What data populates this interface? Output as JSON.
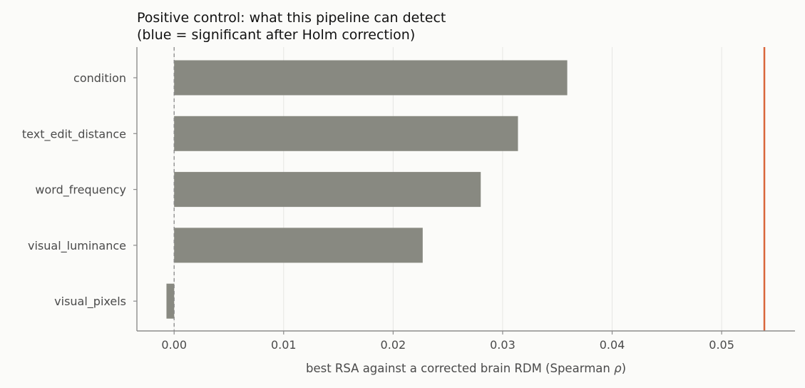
{
  "chart_data": {
    "type": "bar",
    "orientation": "horizontal",
    "title": "Positive control: what this pipeline can detect",
    "subtitle": "(blue = significant after Holm correction)",
    "xlabel": "best RSA against a corrected brain RDM (Spearman ",
    "xlabel_symbol": "ρ",
    "xlabel_suffix": ")",
    "ylabel": "",
    "categories": [
      "condition",
      "text_edit_distance",
      "word_frequency",
      "visual_luminance",
      "visual_pixels"
    ],
    "values": [
      0.0359,
      0.0314,
      0.028,
      0.0227,
      -0.0007
    ],
    "xlim": [
      -0.0034,
      0.0567
    ],
    "xticks": [
      0.0,
      0.01,
      0.02,
      0.03,
      0.04,
      0.05
    ],
    "xtick_labels": [
      "0.00",
      "0.01",
      "0.02",
      "0.03",
      "0.04",
      "0.05"
    ],
    "reference_lines": [
      {
        "value": 0.0,
        "style": "dashed",
        "color": "#8a8a8a"
      },
      {
        "value": 0.0539,
        "style": "solid",
        "color": "#d9663c"
      }
    ],
    "bar_color": "#888981",
    "grid": "vertical"
  }
}
